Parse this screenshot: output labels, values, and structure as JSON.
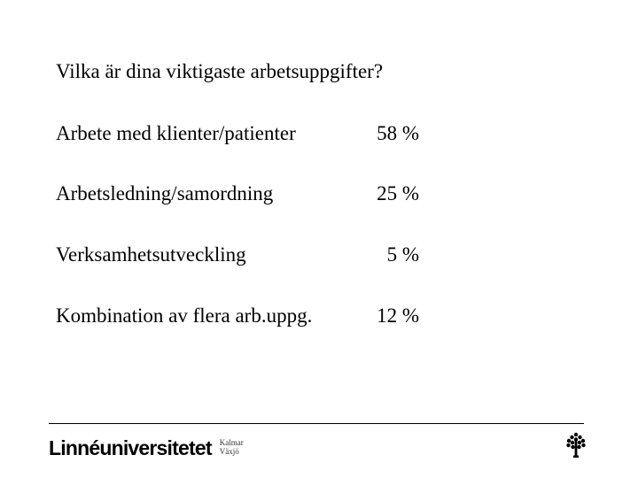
{
  "title": "Vilka är dina viktigaste arbetsuppgifter?",
  "rows": [
    {
      "label": "Arbete med klienter/patienter",
      "value": "58 %"
    },
    {
      "label": "Arbetsledning/samordning",
      "value": "25 %"
    },
    {
      "label": "Verksamhetsutveckling",
      "value": "5 %"
    },
    {
      "label": "Kombination av flera arb.uppg.",
      "value": "12 %"
    }
  ],
  "footer": {
    "brand": "Linnéuniversitetet",
    "city_1": "Kalmar",
    "city_2": "Växjö",
    "logo_icon": "tree-icon"
  }
}
